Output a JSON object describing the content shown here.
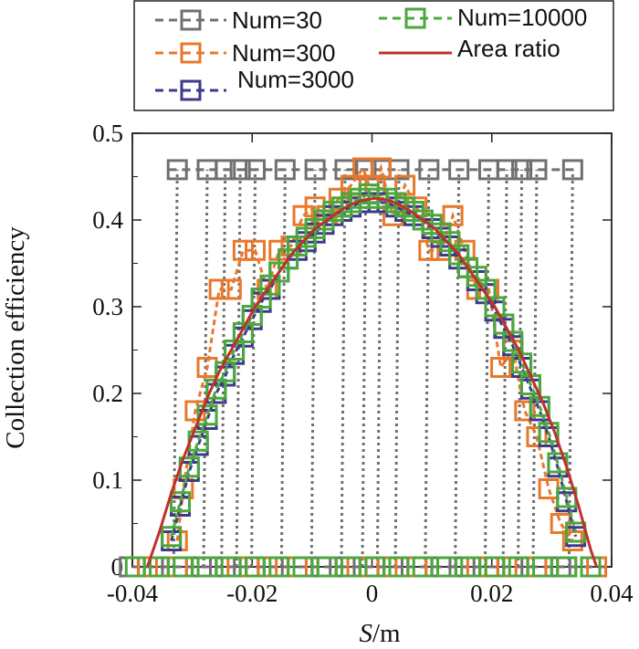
{
  "chart_data": {
    "type": "line",
    "title": "",
    "xlabel_italic": "S",
    "xlabel_rest": "/m",
    "ylabel": "Collection efficiency",
    "xlim": [
      -0.04,
      0.04
    ],
    "ylim": [
      0,
      0.5
    ],
    "x_tick_labels": [
      "-0.04",
      "-0.02",
      "0",
      "0.02",
      "0.04"
    ],
    "y_tick_labels": [
      "0",
      "0.1",
      "0.2",
      "0.3",
      "0.4",
      "0.5"
    ],
    "legend_position": "top",
    "series": [
      {
        "name": "Num=30",
        "color": "#707070",
        "style": "dashed-square",
        "spikes_x": [
          -0.0325,
          -0.0275,
          -0.0245,
          -0.022,
          -0.0195,
          -0.0145,
          -0.0095,
          -0.0045,
          -0.001,
          0.0015,
          0.0045,
          0.0095,
          0.0145,
          0.0195,
          0.0225,
          0.025,
          0.0275,
          0.0335
        ],
        "spike_value": 0.458,
        "baseline_x": [
          -0.0405,
          -0.0365,
          -0.0325,
          -0.0285,
          -0.0245,
          -0.0205,
          -0.0165,
          -0.0125,
          -0.0085,
          -0.0045,
          -0.0005,
          0.0035,
          0.0075,
          0.0115,
          0.0155,
          0.0195,
          0.0235,
          0.0275,
          0.0315
        ]
      },
      {
        "name": "Num=300",
        "color": "#e8782a",
        "style": "dashed-square",
        "x": [
          -0.0325,
          -0.0315,
          -0.0295,
          -0.0275,
          -0.0255,
          -0.0235,
          -0.0215,
          -0.0195,
          -0.0175,
          -0.0155,
          -0.0135,
          -0.0115,
          -0.0095,
          -0.0075,
          -0.0055,
          -0.0035,
          -0.0015,
          -0.0005,
          0.0005,
          0.0015,
          0.0035,
          0.0055,
          0.0075,
          0.0095,
          0.0115,
          0.0135,
          0.0155,
          0.0175,
          0.0195,
          0.0215,
          0.0235,
          0.0255,
          0.0275,
          0.0295,
          0.0315,
          0.0335
        ],
        "values": [
          0.03,
          0.09,
          0.18,
          0.23,
          0.32,
          0.32,
          0.365,
          0.365,
          0.32,
          0.365,
          0.37,
          0.405,
          0.415,
          0.405,
          0.425,
          0.44,
          0.46,
          0.44,
          0.44,
          0.46,
          0.405,
          0.44,
          0.415,
          0.365,
          0.365,
          0.405,
          0.365,
          0.32,
          0.32,
          0.23,
          0.25,
          0.18,
          0.15,
          0.09,
          0.05,
          0.03
        ],
        "baseline_x": [
          -0.0375,
          -0.0325,
          -0.0275,
          -0.0225,
          -0.0175,
          -0.0125,
          -0.0075,
          -0.0025,
          0.0025,
          0.0075,
          0.0125,
          0.0175,
          0.0225,
          0.0275,
          0.0325,
          0.0375
        ]
      },
      {
        "name": "Num=3000",
        "color": "#3d3a8c",
        "style": "dashed-square",
        "x": [
          -0.0335,
          -0.032,
          -0.0305,
          -0.029,
          -0.0275,
          -0.026,
          -0.0245,
          -0.023,
          -0.0215,
          -0.02,
          -0.0185,
          -0.017,
          -0.0155,
          -0.014,
          -0.0125,
          -0.011,
          -0.0095,
          -0.008,
          -0.0065,
          -0.005,
          -0.0035,
          -0.002,
          -0.0005,
          0.001,
          0.0025,
          0.004,
          0.0055,
          0.007,
          0.0085,
          0.01,
          0.0115,
          0.013,
          0.0145,
          0.016,
          0.0175,
          0.019,
          0.0205,
          0.022,
          0.0235,
          0.025,
          0.0265,
          0.028,
          0.0295,
          0.031,
          0.0325,
          0.034
        ],
        "values": [
          0.03,
          0.07,
          0.11,
          0.14,
          0.17,
          0.2,
          0.22,
          0.245,
          0.265,
          0.285,
          0.305,
          0.32,
          0.34,
          0.355,
          0.365,
          0.375,
          0.385,
          0.395,
          0.405,
          0.41,
          0.415,
          0.42,
          0.42,
          0.42,
          0.42,
          0.415,
          0.41,
          0.405,
          0.4,
          0.39,
          0.38,
          0.37,
          0.355,
          0.345,
          0.33,
          0.315,
          0.295,
          0.275,
          0.255,
          0.23,
          0.205,
          0.18,
          0.15,
          0.115,
          0.075,
          0.035
        ]
      },
      {
        "name": "Num=10000",
        "color": "#4aa83c",
        "style": "dashed-square",
        "x": [
          -0.0335,
          -0.032,
          -0.0305,
          -0.029,
          -0.0275,
          -0.026,
          -0.0245,
          -0.023,
          -0.0215,
          -0.02,
          -0.0185,
          -0.017,
          -0.0155,
          -0.014,
          -0.0125,
          -0.011,
          -0.0095,
          -0.008,
          -0.0065,
          -0.005,
          -0.0035,
          -0.002,
          -0.0005,
          0.001,
          0.0025,
          0.004,
          0.0055,
          0.007,
          0.0085,
          0.01,
          0.0115,
          0.013,
          0.0145,
          0.016,
          0.0175,
          0.019,
          0.0205,
          0.022,
          0.0235,
          0.025,
          0.0265,
          0.028,
          0.0295,
          0.031,
          0.0325,
          0.034
        ],
        "values": [
          0.035,
          0.075,
          0.115,
          0.145,
          0.175,
          0.205,
          0.225,
          0.25,
          0.27,
          0.29,
          0.31,
          0.325,
          0.34,
          0.355,
          0.37,
          0.38,
          0.39,
          0.4,
          0.41,
          0.415,
          0.42,
          0.425,
          0.43,
          0.425,
          0.425,
          0.42,
          0.415,
          0.41,
          0.4,
          0.395,
          0.385,
          0.375,
          0.36,
          0.345,
          0.335,
          0.32,
          0.3,
          0.28,
          0.26,
          0.235,
          0.21,
          0.185,
          0.155,
          0.12,
          0.08,
          0.04
        ],
        "baseline_x": [
          -0.0395,
          -0.0355,
          -0.0315,
          -0.0275,
          -0.0235,
          -0.0195,
          -0.0155,
          -0.0115,
          -0.0075,
          -0.0035,
          0.0005,
          0.0045,
          0.0085,
          0.0125,
          0.0165,
          0.0205,
          0.0245,
          0.0285,
          0.0325,
          0.0365
        ]
      },
      {
        "name": "Area ratio",
        "color": "#c0302a",
        "style": "solid",
        "x": [
          -0.0375,
          -0.0355,
          -0.0335,
          -0.0315,
          -0.0295,
          -0.0275,
          -0.0255,
          -0.0235,
          -0.0215,
          -0.0195,
          -0.0175,
          -0.0155,
          -0.0135,
          -0.0115,
          -0.0095,
          -0.0075,
          -0.0055,
          -0.0035,
          -0.0015,
          0.0005,
          0.0025,
          0.0045,
          0.0065,
          0.0085,
          0.0105,
          0.0125,
          0.0145,
          0.0165,
          0.0185,
          0.0205,
          0.0225,
          0.0245,
          0.0265,
          0.0285,
          0.0305,
          0.0325,
          0.0345,
          0.0365,
          0.0375
        ],
        "values": [
          0.0,
          0.04,
          0.085,
          0.125,
          0.16,
          0.195,
          0.225,
          0.25,
          0.275,
          0.3,
          0.32,
          0.34,
          0.36,
          0.375,
          0.39,
          0.4,
          0.41,
          0.418,
          0.423,
          0.425,
          0.423,
          0.418,
          0.41,
          0.4,
          0.39,
          0.375,
          0.36,
          0.34,
          0.32,
          0.3,
          0.275,
          0.25,
          0.22,
          0.19,
          0.155,
          0.115,
          0.07,
          0.02,
          0.0
        ]
      }
    ]
  }
}
